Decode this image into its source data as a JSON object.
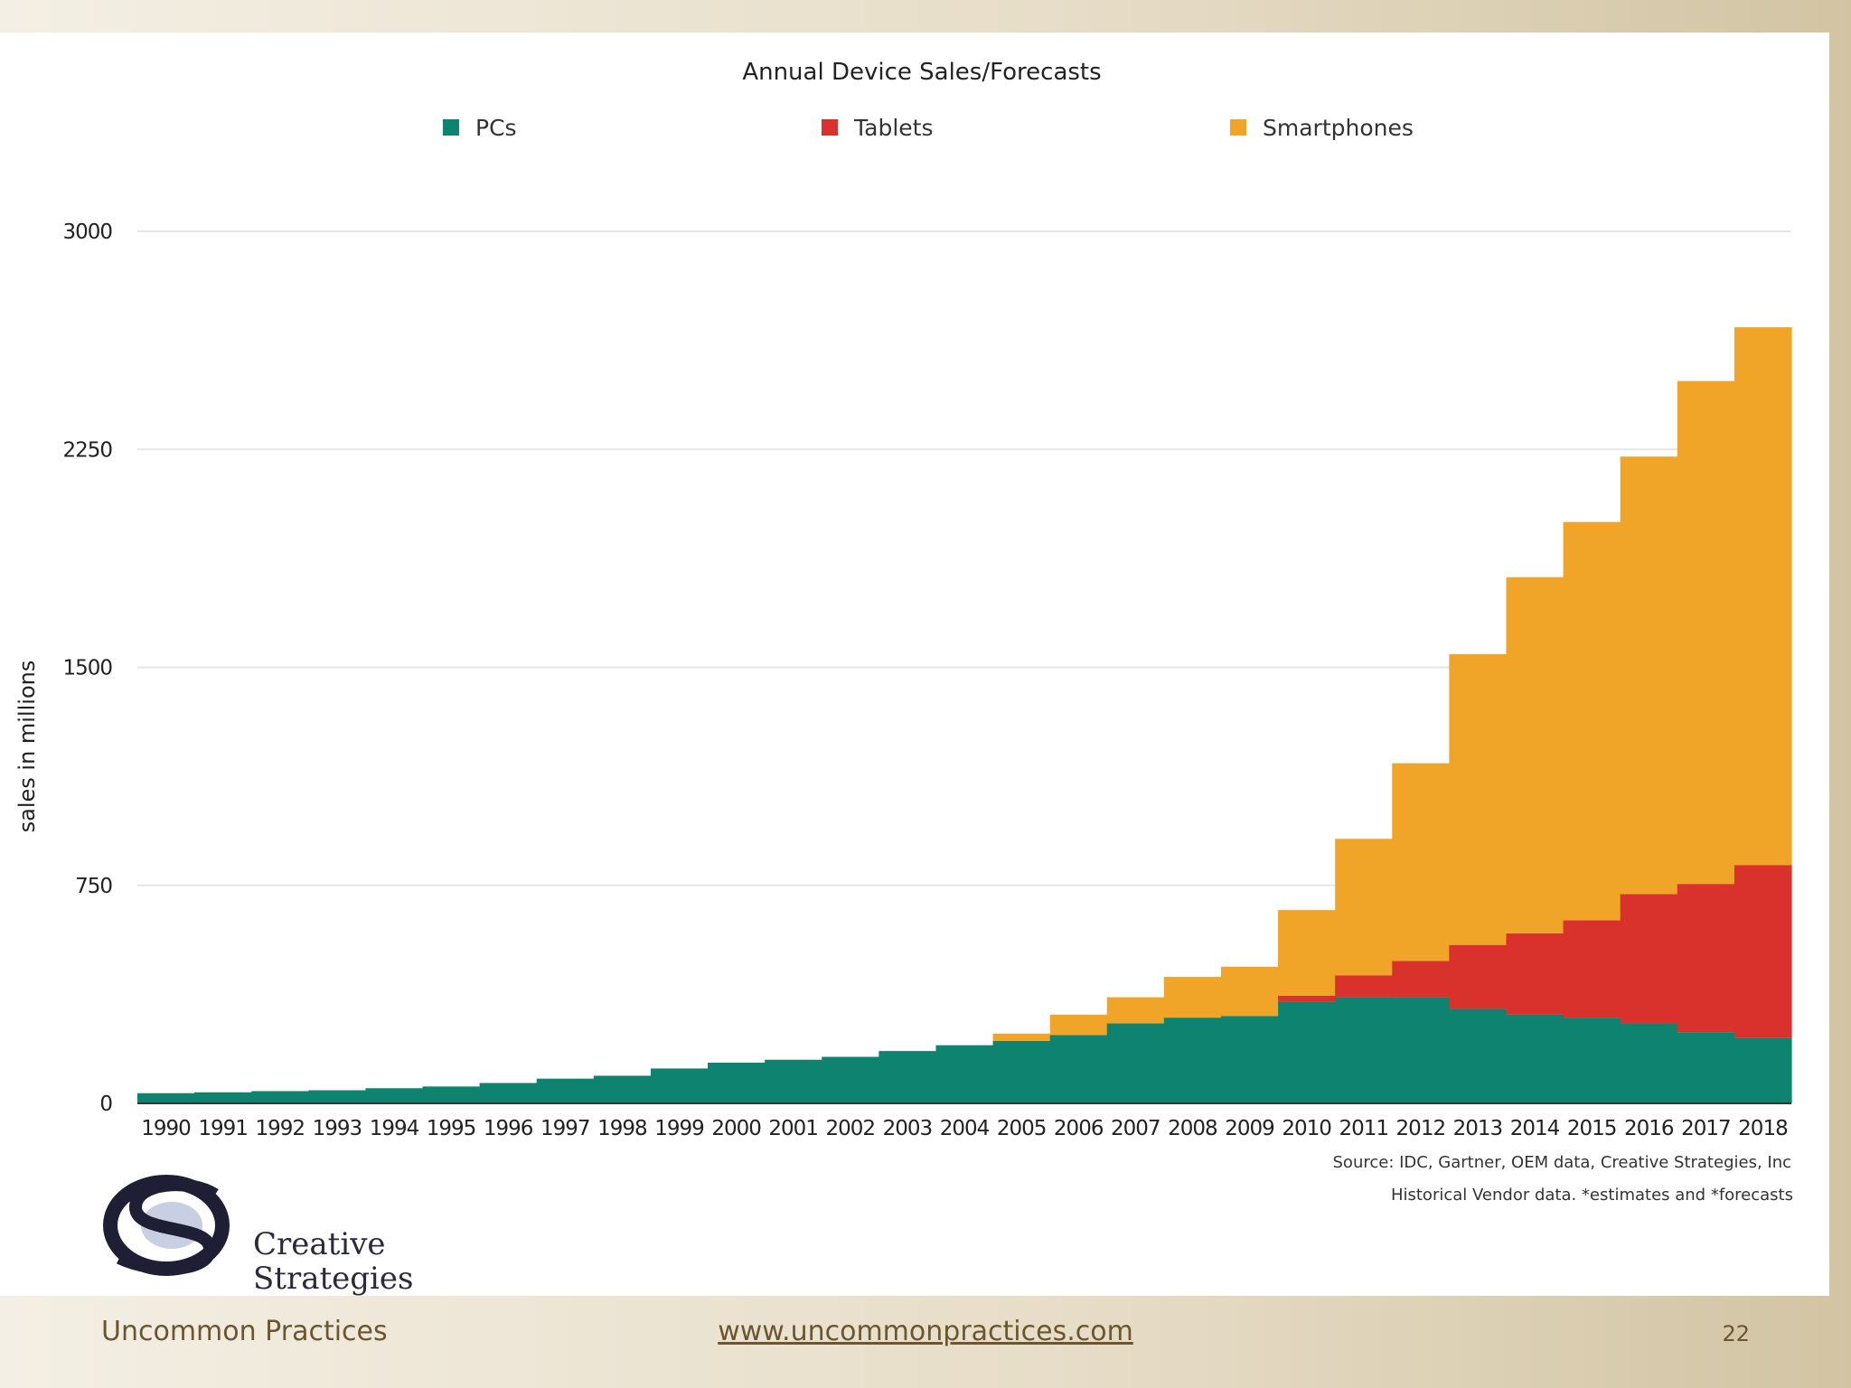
{
  "chart_data": {
    "type": "bar",
    "stacked": true,
    "title": "Annual Device Sales/Forecasts",
    "ylabel": "sales in millions",
    "xlabel": "",
    "ylim": [
      0,
      3000
    ],
    "yticks": [
      0,
      750,
      1500,
      2250,
      3000
    ],
    "legend_position": "top",
    "categories": [
      "1990",
      "1991",
      "1992",
      "1993",
      "1994",
      "1995",
      "1996",
      "1997",
      "1998",
      "1999",
      "2000",
      "2001",
      "2002",
      "2003",
      "2004",
      "2005",
      "2006",
      "2007",
      "2008",
      "2009",
      "2010",
      "2011",
      "2012",
      "2013",
      "2014",
      "2015",
      "2016",
      "2017",
      "2018"
    ],
    "series": [
      {
        "name": "PCs",
        "color": "#0e8470",
        "values": [
          35,
          38,
          42,
          45,
          52,
          58,
          70,
          85,
          95,
          120,
          140,
          150,
          160,
          180,
          200,
          215,
          235,
          275,
          295,
          300,
          350,
          365,
          365,
          325,
          305,
          295,
          275,
          245,
          225
        ]
      },
      {
        "name": "Tablets",
        "color": "#d9312b",
        "values": [
          0,
          0,
          0,
          0,
          0,
          0,
          0,
          0,
          0,
          0,
          0,
          0,
          0,
          0,
          0,
          0,
          0,
          0,
          0,
          0,
          20,
          75,
          125,
          220,
          280,
          335,
          445,
          510,
          595
        ]
      },
      {
        "name": "Smartphones",
        "color": "#f0a428",
        "values": [
          0,
          0,
          0,
          0,
          0,
          0,
          0,
          0,
          0,
          0,
          0,
          0,
          0,
          0,
          0,
          25,
          70,
          90,
          140,
          170,
          295,
          470,
          680,
          1000,
          1225,
          1370,
          1505,
          1730,
          1850
        ]
      }
    ],
    "source_lines": [
      "Source: IDC, Gartner, OEM data, Creative Strategies, Inc",
      "Historical Vendor data. *estimates and *forecasts"
    ]
  },
  "logo": {
    "line1": "Creative",
    "line2": "Strategies",
    "mark": "CS"
  },
  "footer": {
    "left": "Uncommon Practices",
    "center": "www.uncommonpractices.com",
    "page": "22"
  }
}
